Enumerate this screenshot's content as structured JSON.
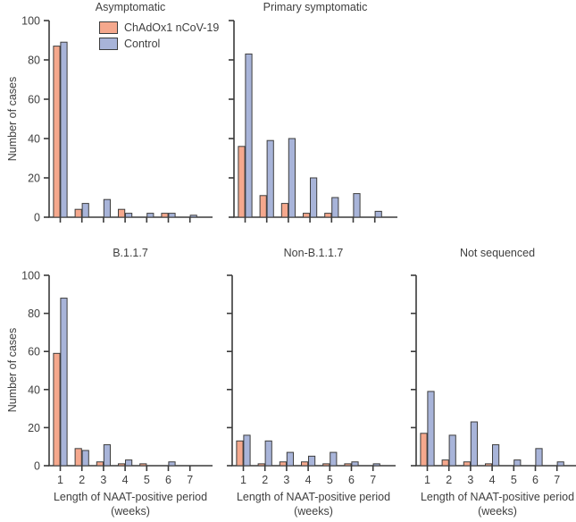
{
  "figure": {
    "y_axis_label": "Number of cases",
    "x_axis_label_line1": "Length of NAAT-positive period",
    "x_axis_label_line2": "(weeks)",
    "legend": [
      {
        "label": "ChAdOx1 nCoV-19",
        "color": "#f5a88d"
      },
      {
        "label": "Control",
        "color": "#a8b4d9"
      }
    ],
    "colors": {
      "bar_border": "#3d3d3d",
      "axis": "#3a3a3a",
      "text": "#404040"
    }
  },
  "chart_data": [
    {
      "type": "bar",
      "title": "Asymptomatic",
      "categories": [
        1,
        2,
        3,
        4,
        5,
        6,
        7
      ],
      "series": [
        {
          "name": "ChAdOx1 nCoV-19",
          "values": [
            87,
            4,
            0,
            4,
            0,
            2,
            0
          ]
        },
        {
          "name": "Control",
          "values": [
            89,
            7,
            9,
            2,
            2,
            2,
            1
          ]
        }
      ],
      "xlabel": "Length of NAAT-positive period (weeks)",
      "ylabel": "Number of cases",
      "ylim": [
        0,
        100
      ],
      "yticks": [
        0,
        20,
        40,
        60,
        80,
        100
      ],
      "legend_position": "top-left-inside"
    },
    {
      "type": "bar",
      "title": "Primary symptomatic",
      "categories": [
        1,
        2,
        3,
        4,
        5,
        6,
        7
      ],
      "series": [
        {
          "name": "ChAdOx1 nCoV-19",
          "values": [
            36,
            11,
            7,
            2,
            2,
            0,
            0
          ]
        },
        {
          "name": "Control",
          "values": [
            83,
            39,
            40,
            20,
            10,
            12,
            3
          ]
        }
      ],
      "xlabel": "Length of NAAT-positive period (weeks)",
      "ylabel": "Number of cases",
      "ylim": [
        0,
        100
      ],
      "yticks": [
        0,
        20,
        40,
        60,
        80,
        100
      ]
    },
    {
      "type": "bar",
      "title": "B.1.1.7",
      "categories": [
        1,
        2,
        3,
        4,
        5,
        6,
        7
      ],
      "series": [
        {
          "name": "ChAdOx1 nCoV-19",
          "values": [
            59,
            9,
            2,
            1,
            1,
            0,
            0
          ]
        },
        {
          "name": "Control",
          "values": [
            88,
            8,
            11,
            3,
            0,
            2,
            0
          ]
        }
      ],
      "xlabel": "Length of NAAT-positive period (weeks)",
      "ylabel": "Number of cases",
      "ylim": [
        0,
        100
      ],
      "yticks": [
        0,
        20,
        40,
        60,
        80,
        100
      ]
    },
    {
      "type": "bar",
      "title": "Non-B.1.1.7",
      "categories": [
        1,
        2,
        3,
        4,
        5,
        6,
        7
      ],
      "series": [
        {
          "name": "ChAdOx1 nCoV-19",
          "values": [
            13,
            1,
            2,
            2,
            1,
            1,
            0
          ]
        },
        {
          "name": "Control",
          "values": [
            16,
            13,
            7,
            5,
            7,
            2,
            1
          ]
        }
      ],
      "xlabel": "Length of NAAT-positive period (weeks)",
      "ylabel": "Number of cases",
      "ylim": [
        0,
        100
      ],
      "yticks": [
        0,
        20,
        40,
        60,
        80,
        100
      ]
    },
    {
      "type": "bar",
      "title": "Not sequenced",
      "categories": [
        1,
        2,
        3,
        4,
        5,
        6,
        7
      ],
      "series": [
        {
          "name": "ChAdOx1 nCoV-19",
          "values": [
            17,
            3,
            2,
            1,
            0,
            0,
            0
          ]
        },
        {
          "name": "Control",
          "values": [
            39,
            16,
            23,
            11,
            3,
            9,
            2
          ]
        }
      ],
      "xlabel": "Length of NAAT-positive period (weeks)",
      "ylabel": "Number of cases",
      "ylim": [
        0,
        100
      ],
      "yticks": [
        0,
        20,
        40,
        60,
        80,
        100
      ]
    }
  ]
}
